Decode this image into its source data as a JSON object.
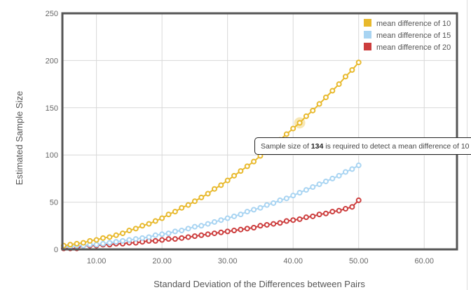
{
  "chart_data": {
    "type": "line",
    "title": "",
    "xlabel": "Standard Deviation of the Differences between Pairs",
    "ylabel": "Estimated Sample Size",
    "xlim": [
      4.8,
      65
    ],
    "ylim": [
      0,
      250
    ],
    "x_ticks": [
      "10.00",
      "20.00",
      "30.00",
      "40.00",
      "50.00",
      "60.00"
    ],
    "x_tick_values": [
      10,
      20,
      30,
      40,
      50,
      60
    ],
    "y_ticks": [
      "0",
      "50",
      "100",
      "150",
      "200",
      "250"
    ],
    "y_tick_values": [
      0,
      50,
      100,
      150,
      200,
      250
    ],
    "grid": true,
    "legend_position": "top-right",
    "x": [
      5,
      6,
      7,
      8,
      9,
      10,
      11,
      12,
      13,
      14,
      15,
      16,
      17,
      18,
      19,
      20,
      21,
      22,
      23,
      24,
      25,
      26,
      27,
      28,
      29,
      30,
      31,
      32,
      33,
      34,
      35,
      36,
      37,
      38,
      39,
      40,
      41,
      42,
      43,
      44,
      45,
      46,
      47,
      48,
      49,
      50
    ],
    "series": [
      {
        "name": "mean difference of 10",
        "color": "#e8b92c",
        "values": [
          4,
          5,
          6,
          7,
          9,
          10,
          12,
          13,
          15,
          17,
          20,
          22,
          25,
          27,
          30,
          33,
          37,
          40,
          44,
          47,
          51,
          55,
          59,
          64,
          68,
          73,
          78,
          83,
          88,
          93,
          99,
          104,
          110,
          116,
          122,
          128,
          134,
          141,
          147,
          154,
          161,
          168,
          175,
          183,
          190,
          198
        ]
      },
      {
        "name": "mean difference of 15",
        "color": "#a8d4f2",
        "values": [
          3,
          3,
          4,
          4,
          5,
          5,
          6,
          7,
          8,
          9,
          10,
          11,
          12,
          13,
          15,
          16,
          17,
          19,
          20,
          22,
          24,
          25,
          27,
          29,
          31,
          33,
          35,
          37,
          40,
          42,
          44,
          47,
          49,
          52,
          54,
          57,
          60,
          63,
          66,
          69,
          72,
          75,
          78,
          82,
          85,
          89
        ]
      },
      {
        "name": "mean difference of 20",
        "color": "#cc3d3d",
        "values": [
          1,
          1,
          1,
          4,
          4,
          4,
          5,
          5,
          6,
          6,
          7,
          7,
          8,
          9,
          9,
          10,
          11,
          11,
          12,
          13,
          14,
          15,
          16,
          17,
          18,
          19,
          20,
          21,
          22,
          23,
          25,
          26,
          27,
          28,
          30,
          31,
          32,
          34,
          35,
          37,
          38,
          40,
          41,
          43,
          45,
          52
        ]
      }
    ],
    "highlight": {
      "series": 0,
      "x": 41,
      "value": 134
    }
  },
  "tooltip": {
    "prefix": "Sample size of ",
    "value": "134",
    "suffix": " is required to detect a  mean difference of 10"
  }
}
